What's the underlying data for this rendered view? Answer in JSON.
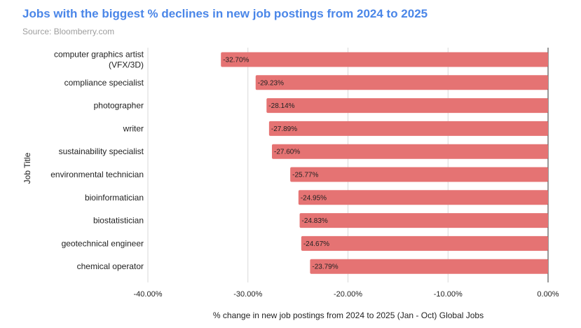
{
  "title": "Jobs with the biggest % declines in new job postings from 2024 to 2025",
  "subtitle": "Source: Bloomberry.com",
  "colors": {
    "bar": "#e57373",
    "title": "#4a86e8",
    "grid": "#d9d9d9",
    "axis": "#333333"
  },
  "chart_data": {
    "type": "bar",
    "orientation": "horizontal",
    "title": "Jobs with the biggest % declines in new job postings from 2024 to 2025",
    "subtitle": "Source: Bloomberry.com",
    "xlabel": "% change in new job postings from 2024 to 2025 (Jan - Oct) Global Jobs",
    "ylabel": "Job Title",
    "xlim": [
      -40,
      0
    ],
    "xticks": [
      -40,
      -30,
      -20,
      -10,
      0
    ],
    "xtick_labels": [
      "-40.00%",
      "-30.00%",
      "-20.00%",
      "-10.00%",
      "0.00%"
    ],
    "grid": true,
    "legend": "none",
    "categories": [
      [
        "computer graphics artist",
        "(VFX/3D)"
      ],
      [
        "compliance specialist"
      ],
      [
        "photographer"
      ],
      [
        "writer"
      ],
      [
        "sustainability specialist"
      ],
      [
        "environmental technician"
      ],
      [
        "bioinformatician"
      ],
      [
        "biostatistician"
      ],
      [
        "geotechnical engineer"
      ],
      [
        "chemical operator"
      ]
    ],
    "values": [
      -32.7,
      -29.23,
      -28.14,
      -27.89,
      -27.6,
      -25.77,
      -24.95,
      -24.83,
      -24.67,
      -23.79
    ],
    "data_labels": [
      "-32.70%",
      "-29.23%",
      "-28.14%",
      "-27.89%",
      "-27.60%",
      "-25.77%",
      "-24.95%",
      "-24.83%",
      "-24.67%",
      "-23.79%"
    ]
  }
}
